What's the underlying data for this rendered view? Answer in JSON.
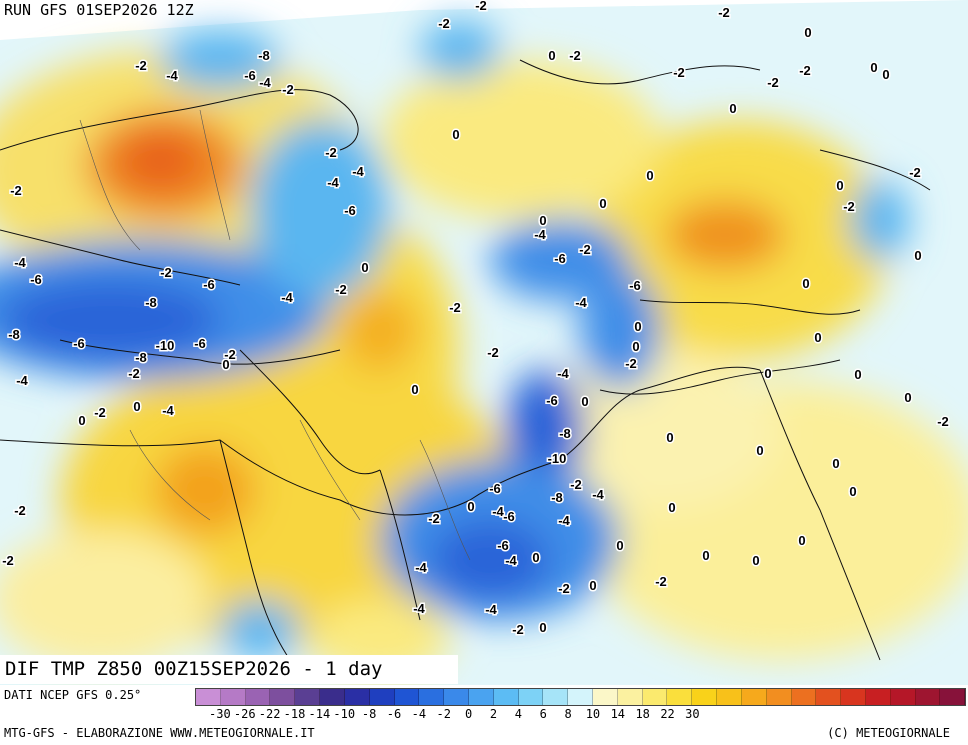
{
  "header": {
    "run_title": "RUN GFS 01SEP2026 12Z"
  },
  "product": {
    "title": "DIF TMP Z850 00Z15SEP2026 - 1 day"
  },
  "footer": {
    "data_source": "DATI NCEP GFS 0.25°",
    "credit_left": "MTG-GFS - ELABORAZIONE WWW.METEOGIORNALE.IT",
    "credit_right": "(C) METEOGIORNALE"
  },
  "legend": {
    "colors": [
      "#c98fd6",
      "#b57ac6",
      "#9a63b3",
      "#7d4f9e",
      "#5a3f93",
      "#3a2d8c",
      "#2a2fa5",
      "#1f3fbf",
      "#1f55d4",
      "#2a6fe0",
      "#3a89ea",
      "#4aa3f0",
      "#5cbcf4",
      "#7dd2f6",
      "#a6e4f8",
      "#d4f4fb",
      "#fbf7c8",
      "#fbf1a0",
      "#fbea6e",
      "#fadf3c",
      "#f9d21a",
      "#f8c11a",
      "#f6a91c",
      "#f28e20",
      "#ec7020",
      "#e3511f",
      "#d8351f",
      "#c81f22",
      "#b51728",
      "#9e1530",
      "#87123a"
    ],
    "tick_labels": [
      "-30",
      "-26",
      "-22",
      "-18",
      "-14",
      "-10",
      "-8",
      "-6",
      "-4",
      "-2",
      "0",
      "2",
      "4",
      "6",
      "8",
      "10",
      "14",
      "18",
      "22",
      "30"
    ]
  },
  "map_labels": [
    "-2",
    "-2",
    "-2",
    "-8",
    "-2",
    "-4",
    "-6",
    "-4",
    "-2",
    "0",
    "-2",
    "-2",
    "-2",
    "-2",
    "0",
    "0",
    "0",
    "-2",
    "0",
    "-2",
    "-4",
    "-4",
    "-6",
    "0",
    "0",
    "0",
    "0",
    "0",
    "-2",
    "0",
    "-4",
    "-6",
    "-2",
    "-4",
    "-6",
    "-2",
    "-8",
    "-6",
    "-4",
    "-2",
    "0",
    "-2",
    "-4",
    "-6",
    "-2",
    "0",
    "-8",
    "-6",
    "-10",
    "-8",
    "-6",
    "-2",
    "-2",
    "-4",
    "0",
    "0",
    "0",
    "0",
    "0",
    "0",
    "0",
    "0",
    "-2",
    "-4",
    "0",
    "-2",
    "0",
    "-4",
    "-6",
    "-8",
    "-10",
    "-2",
    "0",
    "-2",
    "-8",
    "-4",
    "-4",
    "0",
    "-2",
    "-2",
    "-6",
    "-4",
    "0",
    "-6",
    "-2",
    "-6",
    "0",
    "0",
    "0",
    "0",
    "0",
    "0",
    "-2",
    "-4",
    "-4",
    "-2",
    "0",
    "0",
    "-2",
    "-4",
    "-4",
    "-2",
    "0",
    "0",
    "0"
  ]
}
